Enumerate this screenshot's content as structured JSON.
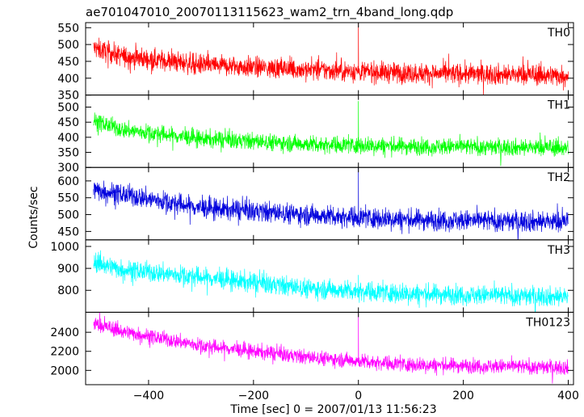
{
  "chart_data": {
    "type": "line",
    "title": "ae701047010_20070113115623_wam2_trn_4band_long.qdp",
    "xlabel": "Time [sec] 0 = 2007/01/13 11:56:23",
    "ylabel": "Counts/sec",
    "xlim": [
      -520,
      410
    ],
    "xticks": [
      -400,
      -200,
      0,
      200,
      400
    ],
    "x_start": -505,
    "x_end": 400,
    "burst_time": 0,
    "panels": [
      {
        "name": "TH0",
        "color": "#ff0000",
        "ylim": [
          350,
          565
        ],
        "yticks": [
          350,
          400,
          450,
          500,
          550
        ],
        "trend": [
          [
            -505,
            490
          ],
          [
            -450,
            465
          ],
          [
            -300,
            440
          ],
          [
            -100,
            425
          ],
          [
            100,
            415
          ],
          [
            400,
            408
          ]
        ],
        "noise": 22,
        "spike_peak": 570
      },
      {
        "name": "TH1",
        "color": "#00ff00",
        "ylim": [
          300,
          540
        ],
        "yticks": [
          300,
          350,
          400,
          450,
          500
        ],
        "trend": [
          [
            -505,
            455
          ],
          [
            -450,
            425
          ],
          [
            -300,
            395
          ],
          [
            -100,
            378
          ],
          [
            100,
            370
          ],
          [
            400,
            365
          ]
        ],
        "noise": 20,
        "spike_peak": 520
      },
      {
        "name": "TH2",
        "color": "#0000dd",
        "ylim": [
          425,
          640
        ],
        "yticks": [
          450,
          500,
          550,
          600
        ],
        "trend": [
          [
            -505,
            575
          ],
          [
            -450,
            560
          ],
          [
            -300,
            520
          ],
          [
            -100,
            500
          ],
          [
            100,
            485
          ],
          [
            400,
            478
          ]
        ],
        "noise": 22,
        "spike_peak": 640
      },
      {
        "name": "TH3",
        "color": "#00ffff",
        "ylim": [
          700,
          1030
        ],
        "yticks": [
          800,
          900,
          1000
        ],
        "trend": [
          [
            -505,
            930
          ],
          [
            -450,
            895
          ],
          [
            -300,
            860
          ],
          [
            -100,
            810
          ],
          [
            100,
            785
          ],
          [
            400,
            770
          ]
        ],
        "noise": 32,
        "spike_peak": 870
      },
      {
        "name": "TH0123",
        "color": "#ff00ff",
        "ylim": [
          1850,
          2610
        ],
        "yticks": [
          2000,
          2200,
          2400
        ],
        "trend": [
          [
            -505,
            2490
          ],
          [
            -450,
            2410
          ],
          [
            -300,
            2260
          ],
          [
            -100,
            2140
          ],
          [
            100,
            2060
          ],
          [
            400,
            2030
          ]
        ],
        "noise": 55,
        "spike_peak": 2610
      }
    ]
  }
}
